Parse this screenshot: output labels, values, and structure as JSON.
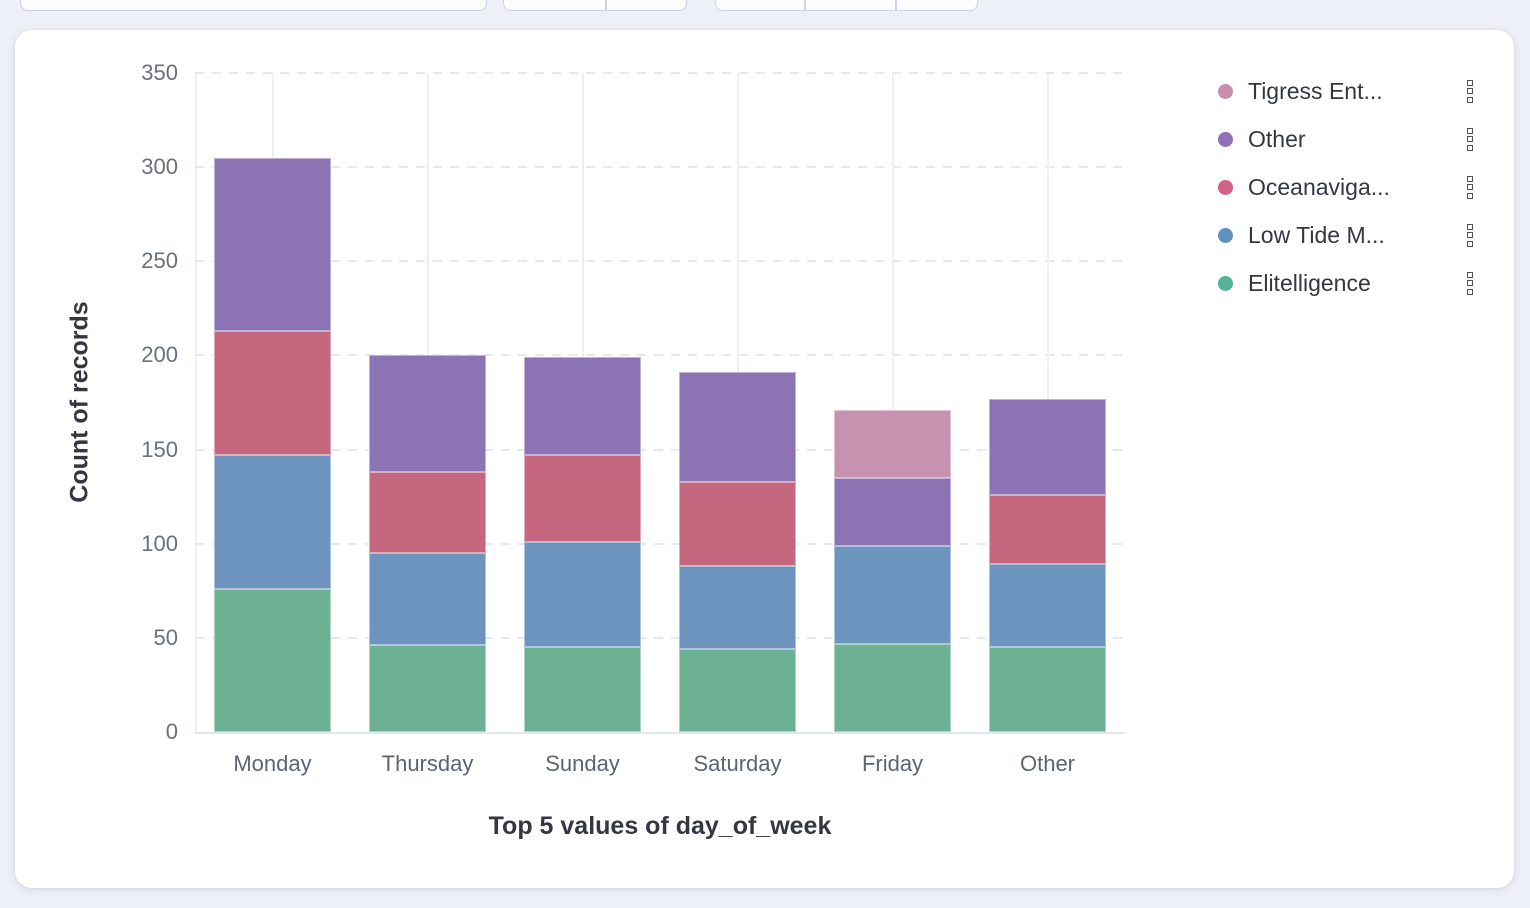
{
  "page": {
    "background_color": "#eef0f7",
    "card_background": "#ffffff"
  },
  "top_bar": {
    "note": "controls cropped at top edge of screenshot, no text visible",
    "controls": [
      {
        "type": "input",
        "segments": 1
      },
      {
        "type": "button-group",
        "segments": 2
      },
      {
        "type": "button-group",
        "segments": 3
      }
    ]
  },
  "icons": {
    "legend_item_actions": "boxes-vertical"
  },
  "chart_data": {
    "type": "bar",
    "stacked": true,
    "title": "",
    "xlabel": "Top 5 values of day_of_week",
    "ylabel": "Count of records",
    "ylim": [
      0,
      350
    ],
    "yticks": [
      0,
      50,
      100,
      150,
      200,
      250,
      300,
      350
    ],
    "grid": {
      "horizontal": "dashed",
      "vertical": "solid"
    },
    "categories": [
      "Monday",
      "Thursday",
      "Sunday",
      "Saturday",
      "Friday",
      "Other"
    ],
    "series": [
      {
        "name": "Elitelligence",
        "legend_color": "#54B399",
        "bar_color": "#6DB194",
        "values": [
          76,
          46,
          45,
          44,
          47,
          45
        ]
      },
      {
        "name": "Low Tide M...",
        "legend_color": "#6092C0",
        "bar_color": "#6D94BF",
        "values": [
          71,
          49,
          56,
          44,
          52,
          44
        ]
      },
      {
        "name": "Oceanaviga...",
        "legend_color": "#D36086",
        "bar_color": "#C66780",
        "values": [
          66,
          43,
          46,
          45,
          0,
          37
        ]
      },
      {
        "name": "Other",
        "legend_color": "#9170B8",
        "bar_color": "#8B73B4",
        "values": [
          92,
          62,
          52,
          58,
          36,
          51
        ]
      },
      {
        "name": "Tigress Ent...",
        "legend_color": "#CA8EAE",
        "bar_color": "#C593AF",
        "values": [
          0,
          0,
          0,
          0,
          36,
          0
        ]
      }
    ],
    "stack_totals": [
      305,
      200,
      199,
      191,
      171,
      177
    ],
    "legend": {
      "position": "right",
      "order": [
        "Tigress Ent...",
        "Other",
        "Oceanaviga...",
        "Low Tide M...",
        "Elitelligence"
      ]
    }
  }
}
